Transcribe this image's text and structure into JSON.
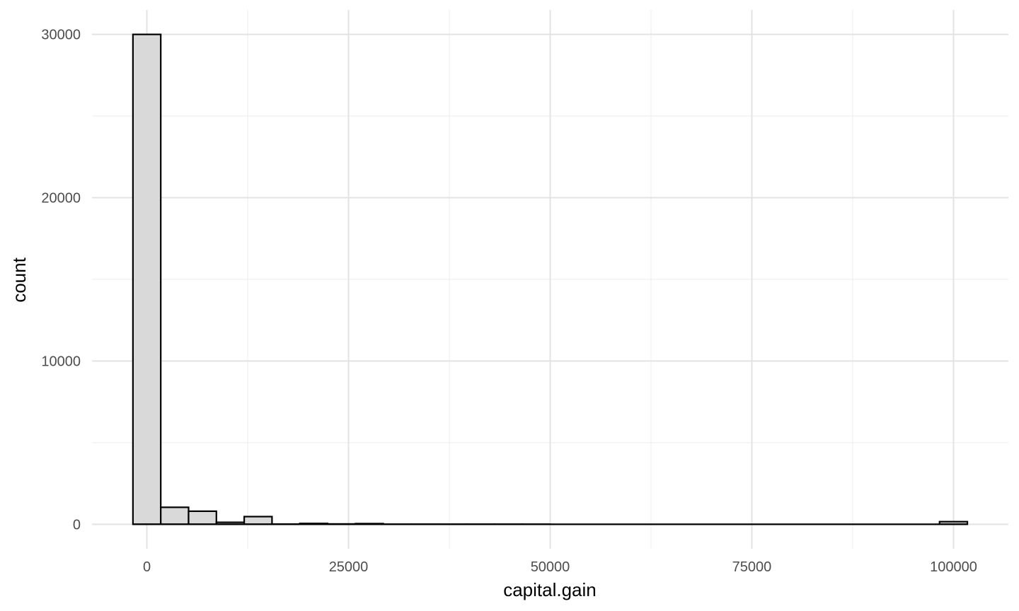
{
  "chart_data": {
    "type": "bar",
    "subtype": "histogram",
    "title": "",
    "xlabel": "capital.gain",
    "ylabel": "count",
    "xlim": [
      -6800,
      106800
    ],
    "ylim": [
      -1500,
      31500
    ],
    "x_ticks": [
      0,
      25000,
      50000,
      75000,
      100000
    ],
    "x_tick_labels": [
      "0",
      "25000",
      "50000",
      "75000",
      "100000"
    ],
    "y_ticks": [
      0,
      10000,
      20000,
      30000
    ],
    "y_tick_labels": [
      "0",
      "10000",
      "20000",
      "30000"
    ],
    "x_minor_ticks": [
      12500,
      37500,
      62500,
      87500
    ],
    "y_minor_ticks": [
      5000,
      15000,
      25000
    ],
    "grid": true,
    "legend": "none",
    "bin_width": 3448,
    "bins": [
      {
        "x0": -1724,
        "x1": 1724,
        "count": 30000
      },
      {
        "x0": 1724,
        "x1": 5172,
        "count": 1040
      },
      {
        "x0": 5172,
        "x1": 8620,
        "count": 800
      },
      {
        "x0": 8620,
        "x1": 12068,
        "count": 120
      },
      {
        "x0": 12068,
        "x1": 15516,
        "count": 470
      },
      {
        "x0": 15516,
        "x1": 18964,
        "count": 10
      },
      {
        "x0": 18964,
        "x1": 22412,
        "count": 50
      },
      {
        "x0": 22412,
        "x1": 25860,
        "count": 20
      },
      {
        "x0": 25860,
        "x1": 29308,
        "count": 40
      },
      {
        "x0": 29308,
        "x1": 32756,
        "count": 3
      },
      {
        "x0": 32756,
        "x1": 36204,
        "count": 5
      },
      {
        "x0": 36204,
        "x1": 39652,
        "count": 2
      },
      {
        "x0": 39652,
        "x1": 43100,
        "count": 3
      },
      {
        "x0": 43100,
        "x1": 46548,
        "count": 2
      },
      {
        "x0": 46548,
        "x1": 49996,
        "count": 1
      },
      {
        "x0": 49996,
        "x1": 53444,
        "count": 0
      },
      {
        "x0": 53444,
        "x1": 56892,
        "count": 0
      },
      {
        "x0": 56892,
        "x1": 60340,
        "count": 0
      },
      {
        "x0": 60340,
        "x1": 63788,
        "count": 0
      },
      {
        "x0": 63788,
        "x1": 67236,
        "count": 0
      },
      {
        "x0": 67236,
        "x1": 70684,
        "count": 0
      },
      {
        "x0": 70684,
        "x1": 74132,
        "count": 0
      },
      {
        "x0": 74132,
        "x1": 77580,
        "count": 0
      },
      {
        "x0": 77580,
        "x1": 81028,
        "count": 0
      },
      {
        "x0": 81028,
        "x1": 84476,
        "count": 0
      },
      {
        "x0": 84476,
        "x1": 87924,
        "count": 0
      },
      {
        "x0": 87924,
        "x1": 91372,
        "count": 0
      },
      {
        "x0": 91372,
        "x1": 94820,
        "count": 0
      },
      {
        "x0": 94820,
        "x1": 98268,
        "count": 0
      },
      {
        "x0": 98268,
        "x1": 101716,
        "count": 160
      }
    ],
    "colors": {
      "bar_fill": "#d9d9d9",
      "bar_stroke": "#000000",
      "grid": "#e3e3e3"
    }
  }
}
